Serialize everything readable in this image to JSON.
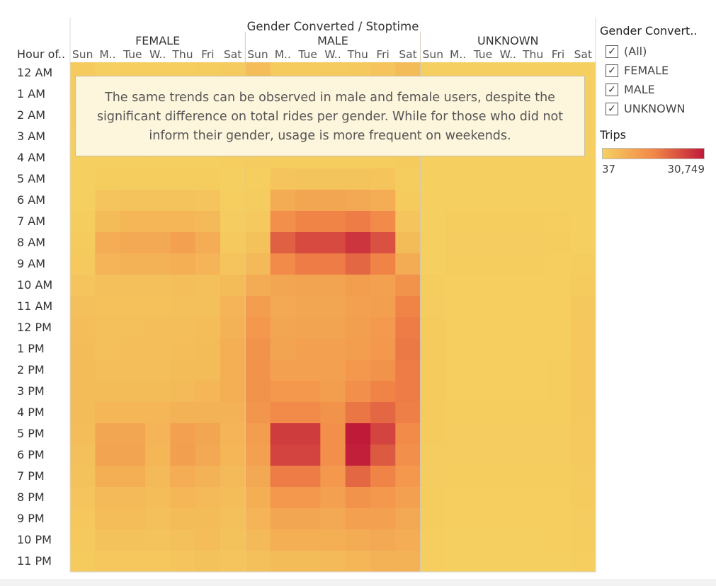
{
  "chart_data": {
    "type": "heatmap",
    "title": "Gender Converted / Stoptime",
    "row_header": "Hour of..",
    "columns": [
      {
        "group": "FEMALE",
        "days": [
          "Sun",
          "M..",
          "Tue",
          "W..",
          "Thu",
          "Fri",
          "Sat"
        ]
      },
      {
        "group": "MALE",
        "days": [
          "Sun",
          "M..",
          "Tue",
          "W..",
          "Thu",
          "Fri",
          "Sat"
        ]
      },
      {
        "group": "UNKNOWN",
        "days": [
          "Sun",
          "M..",
          "Tue",
          "W..",
          "Thu",
          "Fri",
          "Sat"
        ]
      }
    ],
    "rows": [
      "12 AM",
      "1 AM",
      "2 AM",
      "3 AM",
      "4 AM",
      "5 AM",
      "6 AM",
      "7 AM",
      "8 AM",
      "9 AM",
      "10 AM",
      "11 AM",
      "12 PM",
      "1 PM",
      "2 PM",
      "3 PM",
      "4 PM",
      "5 PM",
      "6 PM",
      "7 PM",
      "8 PM",
      "9 PM",
      "10 PM",
      "11 PM"
    ],
    "values": [
      [
        1200,
        300,
        400,
        400,
        500,
        700,
        1300,
        4000,
        1000,
        1200,
        1300,
        1500,
        2500,
        4500,
        200,
        80,
        80,
        80,
        80,
        150,
        250
      ],
      [
        900,
        200,
        200,
        250,
        300,
        400,
        1000,
        3000,
        600,
        700,
        700,
        900,
        1500,
        3500,
        150,
        60,
        60,
        60,
        60,
        100,
        200
      ],
      [
        700,
        100,
        120,
        120,
        150,
        200,
        800,
        2500,
        400,
        400,
        500,
        600,
        900,
        2800,
        120,
        50,
        50,
        50,
        50,
        80,
        180
      ],
      [
        500,
        100,
        100,
        100,
        120,
        150,
        600,
        1500,
        300,
        300,
        300,
        400,
        600,
        1800,
        100,
        40,
        40,
        40,
        40,
        60,
        150
      ],
      [
        300,
        200,
        200,
        200,
        200,
        200,
        400,
        800,
        600,
        600,
        600,
        600,
        600,
        1000,
        60,
        50,
        50,
        50,
        50,
        50,
        100
      ],
      [
        200,
        600,
        700,
        700,
        700,
        600,
        300,
        500,
        2500,
        2700,
        2700,
        2600,
        2300,
        700,
        50,
        100,
        100,
        100,
        100,
        100,
        80
      ],
      [
        300,
        2500,
        2800,
        2900,
        2800,
        2500,
        400,
        800,
        8000,
        9000,
        9000,
        8500,
        7500,
        1200,
        60,
        300,
        300,
        300,
        300,
        250,
        100
      ],
      [
        600,
        4500,
        5500,
        5500,
        5500,
        4800,
        800,
        1500,
        14000,
        16000,
        16000,
        17000,
        15000,
        2500,
        100,
        600,
        600,
        600,
        600,
        500,
        200
      ],
      [
        1000,
        7500,
        8500,
        8500,
        10000,
        7500,
        1500,
        3000,
        21000,
        24000,
        24000,
        27000,
        23000,
        4500,
        150,
        800,
        800,
        800,
        800,
        700,
        300
      ],
      [
        1500,
        6000,
        6500,
        6500,
        7000,
        6000,
        2500,
        5000,
        15000,
        17000,
        17000,
        20000,
        16000,
        8000,
        300,
        600,
        600,
        600,
        600,
        550,
        600
      ],
      [
        2500,
        3500,
        3500,
        3500,
        3800,
        3500,
        4500,
        8000,
        9000,
        9500,
        9500,
        11000,
        10000,
        13000,
        600,
        400,
        400,
        400,
        400,
        400,
        1200
      ],
      [
        3500,
        3300,
        3300,
        3300,
        3500,
        3500,
        6000,
        11000,
        8500,
        9000,
        9000,
        10000,
        10500,
        16000,
        900,
        400,
        400,
        400,
        400,
        450,
        1700
      ],
      [
        4000,
        3500,
        3500,
        3800,
        3800,
        4000,
        6500,
        12000,
        9000,
        9500,
        9500,
        10500,
        11500,
        17000,
        1100,
        450,
        450,
        450,
        450,
        500,
        1900
      ],
      [
        4500,
        3500,
        3800,
        3800,
        4000,
        4200,
        7000,
        13000,
        9500,
        10000,
        10000,
        11000,
        12000,
        17500,
        1200,
        450,
        450,
        450,
        450,
        550,
        2000
      ],
      [
        4500,
        3800,
        3800,
        3800,
        4200,
        4500,
        7000,
        13000,
        10000,
        10000,
        10000,
        12000,
        13000,
        17000,
        1200,
        500,
        500,
        500,
        500,
        600,
        2000
      ],
      [
        4500,
        4500,
        4500,
        4300,
        5000,
        5500,
        7000,
        13000,
        12000,
        12000,
        11000,
        14000,
        16000,
        17000,
        1200,
        500,
        500,
        500,
        500,
        700,
        1900
      ],
      [
        4500,
        5500,
        5500,
        5500,
        6500,
        6500,
        6500,
        12500,
        15000,
        15000,
        13000,
        18000,
        20000,
        16500,
        1100,
        600,
        600,
        600,
        600,
        750,
        1800
      ],
      [
        4000,
        9000,
        9000,
        6000,
        10000,
        9000,
        6000,
        11000,
        26000,
        26000,
        14000,
        30749,
        25000,
        15000,
        1000,
        900,
        900,
        900,
        900,
        900,
        1600
      ],
      [
        3500,
        9500,
        9500,
        5500,
        10500,
        8500,
        5500,
        10000,
        25000,
        25000,
        14000,
        30000,
        22000,
        14000,
        900,
        900,
        900,
        900,
        900,
        800,
        1500
      ],
      [
        3000,
        7000,
        7000,
        5000,
        7500,
        6500,
        5000,
        8500,
        17000,
        17000,
        12000,
        20000,
        16000,
        12000,
        800,
        700,
        700,
        700,
        700,
        700,
        1300
      ],
      [
        2500,
        5000,
        5000,
        4000,
        5500,
        5000,
        4000,
        7000,
        12000,
        12000,
        10000,
        13000,
        12000,
        10000,
        700,
        500,
        500,
        500,
        500,
        500,
        1100
      ],
      [
        2000,
        4000,
        4000,
        3500,
        4200,
        4500,
        3500,
        6000,
        9000,
        9000,
        8500,
        10000,
        10000,
        8500,
        600,
        400,
        400,
        400,
        400,
        500,
        900
      ],
      [
        1500,
        3000,
        3000,
        2800,
        3500,
        4000,
        3000,
        5000,
        7000,
        7000,
        7000,
        8000,
        8500,
        7500,
        500,
        300,
        300,
        300,
        300,
        400,
        700
      ],
      [
        1000,
        2000,
        2000,
        2000,
        2500,
        3000,
        2500,
        3500,
        4500,
        4500,
        5000,
        5500,
        6500,
        6500,
        400,
        200,
        200,
        200,
        200,
        300,
        500
      ]
    ],
    "color_min": 37,
    "color_max": 30749,
    "color_stops": [
      "#f5d060",
      "#f28848",
      "#c01a39"
    ]
  },
  "annotation": {
    "line1": "The same trends can be observed in male and female users, despite the",
    "line2": "significant difference on total rides per gender. While for those who did not",
    "line3": "inform their gender, usage is more frequent on weekends."
  },
  "legend": {
    "title": "Gender Convert..",
    "items": [
      {
        "label": "(All)",
        "checked": true
      },
      {
        "label": "FEMALE",
        "checked": true
      },
      {
        "label": "MALE",
        "checked": true
      },
      {
        "label": "UNKNOWN",
        "checked": true
      }
    ],
    "trips_title": "Trips",
    "trips_min_label": "37",
    "trips_max_label": "30,749"
  }
}
